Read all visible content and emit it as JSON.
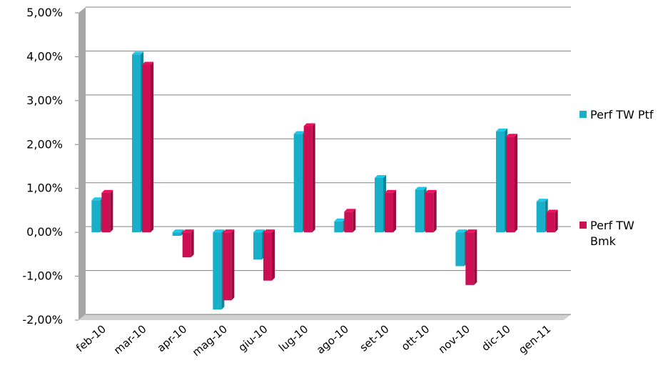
{
  "chart_data": {
    "type": "bar3d",
    "categories": [
      "feb-10",
      "mar-10",
      "apr-10",
      "mag-10",
      "giu-10",
      "lug-10",
      "ago-10",
      "set-10",
      "ott-10",
      "nov-10",
      "dic-10",
      "gen-11"
    ],
    "series": [
      {
        "name": "Perf TW Ptf",
        "color": "#19afc8",
        "values": [
          0.73,
          4.05,
          -0.08,
          -1.76,
          -0.62,
          2.24,
          0.25,
          1.24,
          0.97,
          -0.77,
          2.3,
          0.7
        ]
      },
      {
        "name": "Perf TW Bmk",
        "color": "#cc0f52",
        "values": [
          0.9,
          3.82,
          -0.57,
          -1.55,
          -1.1,
          2.42,
          0.47,
          0.9,
          0.9,
          -1.2,
          2.18,
          0.45
        ]
      }
    ],
    "ylim": [
      -2,
      5
    ],
    "yticks": [
      {
        "value": -2,
        "label": "-2,00%"
      },
      {
        "value": -1,
        "label": "-1,00%"
      },
      {
        "value": 0,
        "label": "0,00%"
      },
      {
        "value": 1,
        "label": "1,00%"
      },
      {
        "value": 2,
        "label": "2,00%"
      },
      {
        "value": 3,
        "label": "3,00%"
      },
      {
        "value": 4,
        "label": "4,00%"
      },
      {
        "value": 5,
        "label": "5,00%"
      }
    ],
    "grid": true,
    "legend": "right"
  }
}
